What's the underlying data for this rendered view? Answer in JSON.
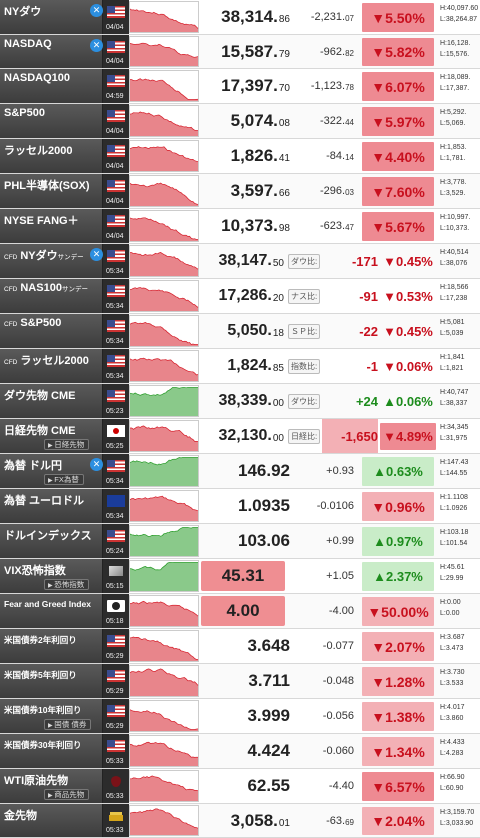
{
  "colors": {
    "down": "#c8101e",
    "up": "#1d8c1d",
    "down_bg": "#f3b0b5",
    "up_bg": "#c9ecc8",
    "row_header": "#454545"
  },
  "rows": [
    {
      "name": "NYダウ",
      "x": true,
      "flag": "us",
      "time": "04/04",
      "price_int": "38,314.",
      "price_dec": "86",
      "chg_int": "-2,231.",
      "chg_dec": "07",
      "pct": "▼5.50%",
      "dir": "down",
      "high": "H:40,097.60",
      "low": "L:38,264.87"
    },
    {
      "name": "NASDAQ",
      "x": true,
      "flag": "us",
      "time": "04/04",
      "price_int": "15,587.",
      "price_dec": "79",
      "chg_int": "-962.",
      "chg_dec": "82",
      "pct": "▼5.82%",
      "dir": "down",
      "high": "H:16,128.",
      "low": "L:15,576."
    },
    {
      "name": "NASDAQ100",
      "flag": "us",
      "time": "04:59",
      "price_int": "17,397.",
      "price_dec": "70",
      "chg_int": "-1,123.",
      "chg_dec": "78",
      "pct": "▼6.07%",
      "dir": "down",
      "high": "H:18,089.",
      "low": "L:17,387."
    },
    {
      "name": "S&P500",
      "flag": "us",
      "time": "04/04",
      "price_int": "5,074.",
      "price_dec": "08",
      "chg_int": "-322.",
      "chg_dec": "44",
      "pct": "▼5.97%",
      "dir": "down",
      "high": "H:5,292.",
      "low": "L:5,069."
    },
    {
      "name": "ラッセル2000",
      "flag": "us",
      "time": "04/04",
      "price_int": "1,826.",
      "price_dec": "41",
      "chg_int": "-84.",
      "chg_dec": "14",
      "pct": "▼4.40%",
      "dir": "down",
      "high": "H:1,853.",
      "low": "L:1,781."
    },
    {
      "name": "PHL半導体(SOX)",
      "flag": "us",
      "time": "04/04",
      "price_int": "3,597.",
      "price_dec": "66",
      "chg_int": "-296.",
      "chg_dec": "03",
      "pct": "▼7.60%",
      "dir": "down",
      "high": "H:3,778.",
      "low": "L:3,529."
    },
    {
      "name": "NYSE FANG＋",
      "flag": "us",
      "time": "04/04",
      "price_int": "10,373.",
      "price_dec": "98",
      "chg_int": "-623.",
      "chg_dec": "47",
      "pct": "▼5.67%",
      "dir": "down",
      "high": "H:10,997.",
      "low": "L:10,373."
    },
    {
      "name": "NYダウ",
      "cfd": "CFD",
      "ja": "サンデー",
      "x": true,
      "flag": "us",
      "time": "05:34",
      "price_int": "38,147.",
      "price_dec": "50",
      "label": "ダウ比:",
      "chg_int": "-171",
      "chg_dec": "",
      "pct": "▼0.45%",
      "dir": "down",
      "high": "H:40,514",
      "low": "L:38,076"
    },
    {
      "name": "NAS100",
      "cfd": "CFD",
      "ja": "サンデー",
      "flag": "us",
      "time": "05:34",
      "price_int": "17,286.",
      "price_dec": "20",
      "label": "ナス比:",
      "chg_int": "-91",
      "chg_dec": "",
      "pct": "▼0.53%",
      "dir": "down",
      "high": "H:18,566",
      "low": "L:17,238"
    },
    {
      "name": "S&P500",
      "cfd": "CFD",
      "flag": "us",
      "time": "05:34",
      "price_int": "5,050.",
      "price_dec": "18",
      "label": "ＳＰ比:",
      "chg_int": "-22",
      "chg_dec": "",
      "pct": "▼0.45%",
      "dir": "down",
      "high": "H:5,081",
      "low": "L:5,039"
    },
    {
      "name": "ラッセル2000",
      "cfd": "CFD",
      "flag": "us",
      "time": "05:34",
      "price_int": "1,824.",
      "price_dec": "85",
      "label": "指数比:",
      "chg_int": "-1",
      "chg_dec": "",
      "pct": "▼0.06%",
      "dir": "down",
      "high": "H:1,841",
      "low": "L:1,821"
    },
    {
      "name": "ダウ先物 CME",
      "flag": "us",
      "time": "05:23",
      "price_int": "38,339.",
      "price_dec": "00",
      "label": "ダウ比:",
      "chg_int": "+24",
      "chg_dec": "",
      "pct": "▲0.06%",
      "dir": "up",
      "high": "H:40,747",
      "low": "L:38,337"
    },
    {
      "name": "日経先物 CME",
      "sub": "日経先物",
      "flag": "jp",
      "time": "05:25",
      "price_int": "32,130.",
      "price_dec": "00",
      "label": "日経比:",
      "chg_int": "-1,650",
      "chg_dec": "",
      "pct": "▼4.89%",
      "dir": "down",
      "high": "H:34,345",
      "low": "L:31,975"
    },
    {
      "name": "為替 ドル円",
      "sub": "FX為替",
      "x": true,
      "flag": "us",
      "time": "05:34",
      "price_int": "146.92",
      "price_dec": "",
      "chg_int": "+0.93",
      "chg_dec": "",
      "pct": "▲0.63%",
      "dir": "up",
      "high": "H:147.43",
      "low": "L:144.55"
    },
    {
      "name": "為替 ユーロドル",
      "flag": "eu",
      "time": "05:34",
      "price_int": "1.0935",
      "price_dec": "",
      "chg_int": "-0.0106",
      "chg_dec": "",
      "pct": "▼0.96%",
      "dir": "down",
      "high": "H:1.1108",
      "low": "L:1.0926"
    },
    {
      "name": "ドルインデックス",
      "flag": "us",
      "time": "05:24",
      "price_int": "103.06",
      "price_dec": "",
      "chg_int": "+0.99",
      "chg_dec": "",
      "pct": "▲0.97%",
      "dir": "up",
      "high": "H:103.18",
      "low": "L:101.54"
    },
    {
      "name": "VIX恐怖指数",
      "sub": "恐怖指数",
      "flag": "vix",
      "time": "05:15",
      "price_int": "45.31",
      "price_dec": "",
      "chg_int": "+1.05",
      "chg_dec": "",
      "pct": "▲2.37%",
      "dir": "up",
      "high": "H:45.61",
      "low": "L:29.99"
    },
    {
      "name": "Fear and Greed Index",
      "flag": "fear",
      "time": "05:18",
      "price_int": "4.00",
      "price_dec": "",
      "chg_int": "-4.00",
      "chg_dec": "",
      "pct": "▼50.00%",
      "dir": "down",
      "high": "H:0.00",
      "low": "L:0.00"
    },
    {
      "name": "米国債券2年利回り",
      "flag": "us",
      "time": "05:29",
      "price_int": "3.648",
      "price_dec": "",
      "chg_int": "-0.077",
      "chg_dec": "",
      "pct": "▼2.07%",
      "dir": "down",
      "high": "H:3.687",
      "low": "L:3.473"
    },
    {
      "name": "米国債券5年利回り",
      "flag": "us",
      "time": "05:29",
      "price_int": "3.711",
      "price_dec": "",
      "chg_int": "-0.048",
      "chg_dec": "",
      "pct": "▼1.28%",
      "dir": "down",
      "high": "H:3.730",
      "low": "L:3.533"
    },
    {
      "name": "米国債券10年利回り",
      "sub": "国債 債券",
      "flag": "us",
      "time": "05:29",
      "price_int": "3.999",
      "price_dec": "",
      "chg_int": "-0.056",
      "chg_dec": "",
      "pct": "▼1.38%",
      "dir": "down",
      "high": "H:4.017",
      "low": "L:3.860"
    },
    {
      "name": "米国債券30年利回り",
      "flag": "us",
      "time": "05:33",
      "price_int": "4.424",
      "price_dec": "",
      "chg_int": "-0.060",
      "chg_dec": "",
      "pct": "▼1.34%",
      "dir": "down",
      "high": "H:4.433",
      "low": "L:4.283"
    },
    {
      "name": "WTI原油先物",
      "sub": "商品先物",
      "flag": "oil",
      "time": "05:33",
      "price_int": "62.55",
      "price_dec": "",
      "chg_int": "-4.40",
      "chg_dec": "",
      "pct": "▼6.57%",
      "dir": "down",
      "high": "H:66.90",
      "low": "L:60.90"
    },
    {
      "name": "金先物",
      "flag": "gold",
      "time": "05:33",
      "price_int": "3,058.",
      "price_dec": "01",
      "chg_int": "-63.",
      "chg_dec": "69",
      "pct": "▼2.04%",
      "dir": "down",
      "high": "H:3,159.70",
      "low": "L:3,033.90"
    }
  ]
}
